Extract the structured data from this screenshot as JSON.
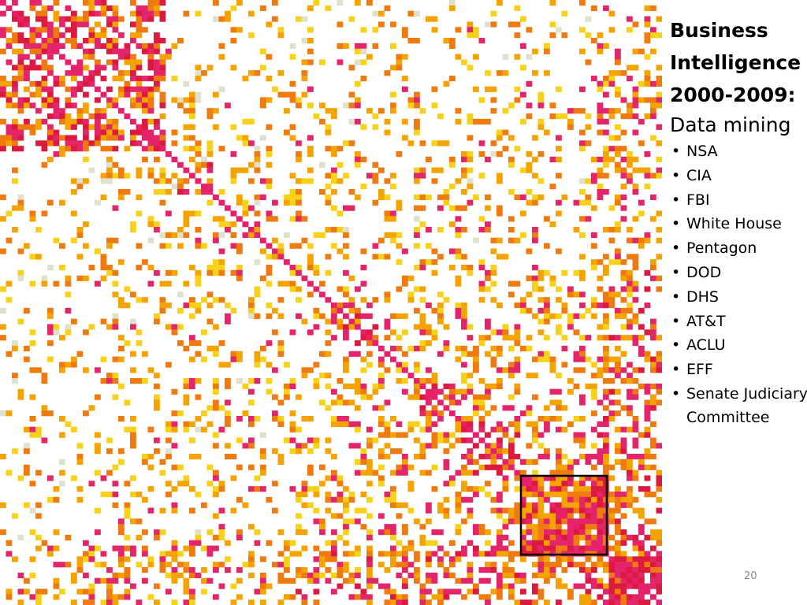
{
  "slide": {
    "title": "Business Intelligence 2000-2009:",
    "subtitle": "Data mining",
    "bullets": [
      "NSA",
      "CIA",
      "FBI",
      "White House",
      "Pentagon",
      "DOD",
      "DHS",
      "AT&T",
      "ACLU",
      "EFF",
      "Senate Judiciary Committee"
    ],
    "page_number": "20"
  }
}
